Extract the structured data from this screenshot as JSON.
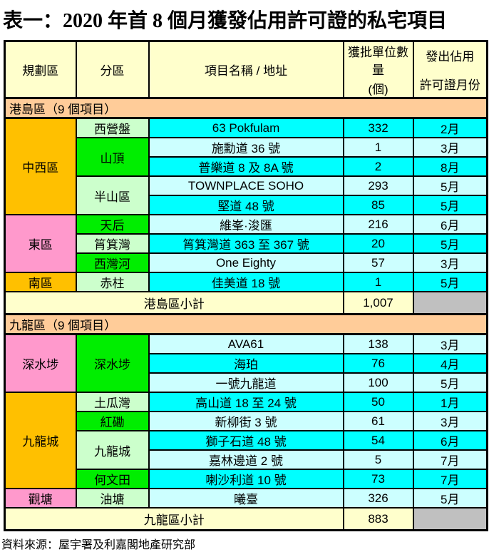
{
  "title": "表一：2020 年首 8 個月獲發佔用許可證的私宅項目",
  "columns": {
    "planning_area": "規劃區",
    "subdistrict": "分區",
    "project": "項目名稱 / 地址",
    "units_line1": "獲批單位數量",
    "units_line2": "(個)",
    "month_line1": "發出佔用",
    "month_line2": "許可證月份"
  },
  "colors": {
    "page_bg": "#FFFFFF",
    "header_bg": "#FFFFCC",
    "section_bg": "#FFCC99",
    "subtotal_bg": "#FFFFCC",
    "gray_cell": "#C0C0C0",
    "row_bright": "#00FFFF",
    "row_light": "#CCFFFF",
    "orange": "#FFC000",
    "pink": "#FF99CC",
    "pale_green": "#CCFFCC",
    "bright_green": "#00EE00",
    "border": "#000000"
  },
  "sections": [
    {
      "label": "港島區（9 個項目）",
      "districts": [
        {
          "name": "中西區",
          "color": "orange",
          "subdistricts": [
            {
              "name": "西營盤",
              "color": "pale_green",
              "projects": [
                {
                  "name": "63 Pokfulam",
                  "units": "332",
                  "month": "2月"
                }
              ]
            },
            {
              "name": "山頂",
              "color": "bright_green",
              "projects": [
                {
                  "name": "施勳道 36 號",
                  "units": "1",
                  "month": "3月"
                },
                {
                  "name": "普樂道 8 及 8A 號",
                  "units": "2",
                  "month": "8月"
                }
              ]
            },
            {
              "name": "半山區",
              "color": "pale_green",
              "projects": [
                {
                  "name": "TOWNPLACE SOHO",
                  "units": "293",
                  "month": "5月"
                },
                {
                  "name": "堅道 48 號",
                  "units": "85",
                  "month": "5月"
                }
              ]
            }
          ]
        },
        {
          "name": "東區",
          "color": "pink",
          "subdistricts": [
            {
              "name": "天后",
              "color": "bright_green",
              "projects": [
                {
                  "name": "維峯·浚匯",
                  "units": "216",
                  "month": "6月"
                }
              ]
            },
            {
              "name": "筲箕灣",
              "color": "pale_green",
              "projects": [
                {
                  "name": "筲箕灣道 363 至 367 號",
                  "units": "20",
                  "month": "5月"
                }
              ]
            },
            {
              "name": "西灣河",
              "color": "bright_green",
              "projects": [
                {
                  "name": "One Eighty",
                  "units": "57",
                  "month": "3月"
                }
              ]
            }
          ]
        },
        {
          "name": "南區",
          "color": "orange",
          "subdistricts": [
            {
              "name": "赤柱",
              "color": "pale_green",
              "projects": [
                {
                  "name": "佳美道 18 號",
                  "units": "1",
                  "month": "5月"
                }
              ]
            }
          ]
        }
      ],
      "subtotal": {
        "label": "港島區小計",
        "value": "1,007"
      }
    },
    {
      "label": "九龍區（9 個項目）",
      "districts": [
        {
          "name": "深水埗",
          "color": "pink",
          "subdistricts": [
            {
              "name": "深水埗",
              "color": "bright_green",
              "projects": [
                {
                  "name": "AVA61",
                  "units": "138",
                  "month": "3月"
                },
                {
                  "name": "海珀",
                  "units": "76",
                  "month": "4月"
                },
                {
                  "name": "一號九龍道",
                  "units": "100",
                  "month": "5月"
                }
              ]
            }
          ]
        },
        {
          "name": "九龍城",
          "color": "orange",
          "subdistricts": [
            {
              "name": "土瓜灣",
              "color": "pale_green",
              "projects": [
                {
                  "name": "高山道 18 至 24 號",
                  "units": "50",
                  "month": "1月"
                }
              ]
            },
            {
              "name": "紅磡",
              "color": "bright_green",
              "projects": [
                {
                  "name": "新柳街 3 號",
                  "units": "61",
                  "month": "3月"
                }
              ]
            },
            {
              "name": "九龍城",
              "color": "pale_green",
              "projects": [
                {
                  "name": "獅子石道 48 號",
                  "units": "54",
                  "month": "6月"
                },
                {
                  "name": "嘉林邊道 2 號",
                  "units": "5",
                  "month": "7月"
                }
              ]
            },
            {
              "name": "何文田",
              "color": "bright_green",
              "projects": [
                {
                  "name": "喇沙利道 10 號",
                  "units": "73",
                  "month": "7月"
                }
              ]
            }
          ]
        },
        {
          "name": "觀塘",
          "color": "pink",
          "subdistricts": [
            {
              "name": "油塘",
              "color": "pale_green",
              "projects": [
                {
                  "name": "曦臺",
                  "units": "326",
                  "month": "5月"
                }
              ]
            }
          ]
        }
      ],
      "subtotal": {
        "label": "九龍區小計",
        "value": "883"
      }
    }
  ],
  "footer": {
    "source": "資料來源：屋宇署及利嘉閣地產研究部"
  }
}
